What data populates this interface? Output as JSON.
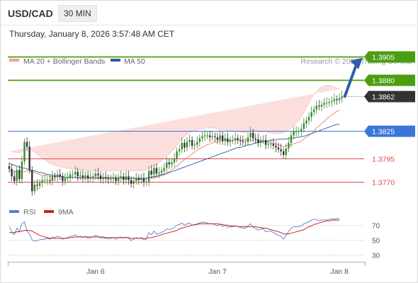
{
  "header": {
    "symbol": "USD/CAD",
    "timeframe": "30 MIN",
    "datetime": "Thursday, January 8, 2026 3:57:48 AM CET"
  },
  "legend": {
    "bollinger": {
      "label": "MA 20 + Bollinger Bands",
      "color": "#f4a09a"
    },
    "ma50": {
      "label": "MA 50",
      "color": "#2d5b9b"
    },
    "credit": "Research © 2026 Trading Central"
  },
  "colors": {
    "resistance": "#4a9e10",
    "pivot": "#3a76d8",
    "support": "#e04a4a",
    "current": "#333333",
    "arrow": "#2d5fa8",
    "candle_up": "#3c8a2e",
    "candle_down": "#333333",
    "band_fill": "#fbd9d6",
    "rsi": "#5a7fd6",
    "rsi_ma": "#d62020"
  },
  "chart_data": [
    {
      "type": "line",
      "name": "price",
      "y_range": [
        1.3745,
        1.392
      ],
      "levels": [
        {
          "value": 1.3905,
          "label": "1.3905",
          "kind": "resistance"
        },
        {
          "value": 1.388,
          "label": "1.3880",
          "kind": "resistance"
        },
        {
          "value": 1.3862,
          "label": "1.3862",
          "kind": "current"
        },
        {
          "value": 1.3825,
          "label": "1.3825",
          "kind": "pivot"
        },
        {
          "value": 1.3795,
          "label": "1.3795",
          "kind": "support"
        },
        {
          "value": 1.377,
          "label": "1.3770",
          "kind": "support"
        }
      ],
      "x_ticks": [
        {
          "index": 34,
          "label": "Jan 6"
        },
        {
          "index": 82,
          "label": "Jan 7"
        },
        {
          "index": 130,
          "label": "Jan 8"
        }
      ],
      "close": [
        1.3784,
        1.3776,
        1.3771,
        1.3783,
        1.3773,
        1.3792,
        1.3813,
        1.3808,
        1.3783,
        1.376,
        1.3767,
        1.3766,
        1.3769,
        1.3772,
        1.3772,
        1.3772,
        1.3771,
        1.3776,
        1.3775,
        1.3778,
        1.3776,
        1.3771,
        1.3774,
        1.3774,
        1.3778,
        1.3778,
        1.3781,
        1.3776,
        1.3777,
        1.3775,
        1.3777,
        1.3774,
        1.3775,
        1.3776,
        1.3779,
        1.3777,
        1.3773,
        1.3775,
        1.3774,
        1.3773,
        1.3773,
        1.3774,
        1.3771,
        1.3774,
        1.3776,
        1.3772,
        1.3776,
        1.3772,
        1.3768,
        1.3771,
        1.3774,
        1.3772,
        1.3774,
        1.377,
        1.377,
        1.3782,
        1.3778,
        1.3785,
        1.3779,
        1.378,
        1.3782,
        1.3785,
        1.3791,
        1.3789,
        1.3791,
        1.3795,
        1.3803,
        1.3805,
        1.3812,
        1.3807,
        1.3813,
        1.3815,
        1.3809,
        1.381,
        1.3813,
        1.3817,
        1.3819,
        1.382,
        1.382,
        1.3818,
        1.3819,
        1.3818,
        1.3815,
        1.382,
        1.3814,
        1.3817,
        1.3813,
        1.3815,
        1.3815,
        1.3817,
        1.3815,
        1.3814,
        1.3813,
        1.3813,
        1.3818,
        1.3823,
        1.3817,
        1.3816,
        1.3812,
        1.3815,
        1.3815,
        1.381,
        1.3811,
        1.3811,
        1.3809,
        1.3807,
        1.3805,
        1.3803,
        1.3799,
        1.3806,
        1.3812,
        1.382,
        1.3824,
        1.3824,
        1.3825,
        1.3827,
        1.3833,
        1.3836,
        1.384,
        1.3845,
        1.3848,
        1.3852,
        1.3851,
        1.3853,
        1.3855,
        1.3855,
        1.3856,
        1.3857,
        1.3859,
        1.3858,
        1.386,
        1.3862
      ],
      "ma20": [
        1.3783,
        1.3782,
        1.3781,
        1.3781,
        1.378,
        1.3781,
        1.3781,
        1.3782,
        1.3782,
        1.3781,
        1.378,
        1.3779,
        1.3778,
        1.3777,
        1.3777,
        1.3777,
        1.3776,
        1.3776,
        1.3776,
        1.3776,
        1.3776,
        1.3775,
        1.3775,
        1.3775,
        1.3775,
        1.3775,
        1.3775,
        1.3775,
        1.3775,
        1.3775,
        1.3775,
        1.3775,
        1.3775,
        1.3775,
        1.3775,
        1.3775,
        1.3775,
        1.3775,
        1.3775,
        1.3775,
        1.3775,
        1.3775,
        1.3775,
        1.3775,
        1.3775,
        1.3775,
        1.3774,
        1.3774,
        1.3774,
        1.3774,
        1.3773,
        1.3773,
        1.3773,
        1.3773,
        1.3773,
        1.3774,
        1.3774,
        1.3775,
        1.3775,
        1.3776,
        1.3777,
        1.3778,
        1.378,
        1.3781,
        1.3783,
        1.3785,
        1.3787,
        1.3789,
        1.3792,
        1.3794,
        1.3796,
        1.3798,
        1.38,
        1.3802,
        1.3804,
        1.3806,
        1.3807,
        1.3809,
        1.381,
        1.3811,
        1.3812,
        1.3813,
        1.3813,
        1.3814,
        1.3814,
        1.3815,
        1.3815,
        1.3815,
        1.3815,
        1.3815,
        1.3815,
        1.3815,
        1.3815,
        1.3815,
        1.3815,
        1.3815,
        1.3815,
        1.3815,
        1.3814,
        1.3814,
        1.3814,
        1.3813,
        1.3813,
        1.3812,
        1.3811,
        1.3811,
        1.381,
        1.3809,
        1.3808,
        1.3809,
        1.3809,
        1.381,
        1.3811,
        1.3812,
        1.3813,
        1.3814,
        1.3816,
        1.3818,
        1.382,
        1.3822,
        1.3825,
        1.3828,
        1.383,
        1.3833,
        1.3835,
        1.3838,
        1.384,
        1.3842,
        1.3844,
        1.3846,
        1.3847
      ],
      "bb_upper": [
        1.3803,
        1.3803,
        1.3802,
        1.3802,
        1.3801,
        1.3803,
        1.3805,
        1.3807,
        1.3806,
        1.3804,
        1.3802,
        1.38,
        1.3798,
        1.3795,
        1.3794,
        1.3792,
        1.379,
        1.3789,
        1.3788,
        1.3787,
        1.3786,
        1.3786,
        1.3785,
        1.3785,
        1.3784,
        1.3784,
        1.3784,
        1.3783,
        1.3783,
        1.3783,
        1.3783,
        1.3782,
        1.3782,
        1.3782,
        1.3782,
        1.3782,
        1.3782,
        1.3782,
        1.3782,
        1.3782,
        1.3782,
        1.3782,
        1.3782,
        1.3782,
        1.3782,
        1.3782,
        1.3782,
        1.3782,
        1.3782,
        1.3782,
        1.3782,
        1.3782,
        1.3782,
        1.3782,
        1.3783,
        1.3785,
        1.3786,
        1.3788,
        1.3789,
        1.3791,
        1.3793,
        1.3795,
        1.3798,
        1.38,
        1.3803,
        1.3806,
        1.381,
        1.3813,
        1.3817,
        1.3819,
        1.3821,
        1.3823,
        1.3824,
        1.3825,
        1.3826,
        1.3827,
        1.3827,
        1.3828,
        1.3828,
        1.3828,
        1.3828,
        1.3828,
        1.3827,
        1.3827,
        1.3826,
        1.3826,
        1.3825,
        1.3825,
        1.3824,
        1.3824,
        1.3824,
        1.3824,
        1.3823,
        1.3823,
        1.3824,
        1.3825,
        1.3825,
        1.3825,
        1.3824,
        1.3824,
        1.3824,
        1.3824,
        1.3823,
        1.3823,
        1.3822,
        1.3822,
        1.3822,
        1.3822,
        1.3823,
        1.3825,
        1.3826,
        1.3828,
        1.383,
        1.3833,
        1.3836,
        1.384,
        1.3845,
        1.385,
        1.3855,
        1.386,
        1.3864,
        1.3867,
        1.387,
        1.3872,
        1.3873,
        1.3874,
        1.3874,
        1.3873,
        1.3872,
        1.3871,
        1.387
      ],
      "bb_lower": [
        1.3763,
        1.3761,
        1.376,
        1.376,
        1.3759,
        1.3759,
        1.3757,
        1.3757,
        1.3758,
        1.3758,
        1.3758,
        1.3758,
        1.3758,
        1.3759,
        1.376,
        1.3762,
        1.3762,
        1.3763,
        1.3764,
        1.3765,
        1.3766,
        1.3764,
        1.3765,
        1.3765,
        1.3766,
        1.3766,
        1.3766,
        1.3767,
        1.3767,
        1.3767,
        1.3767,
        1.3768,
        1.3768,
        1.3768,
        1.3768,
        1.3768,
        1.3768,
        1.3768,
        1.3768,
        1.3768,
        1.3768,
        1.3768,
        1.3768,
        1.3768,
        1.3768,
        1.3768,
        1.3766,
        1.3766,
        1.3766,
        1.3766,
        1.3764,
        1.3764,
        1.3764,
        1.3764,
        1.3763,
        1.3763,
        1.3762,
        1.3762,
        1.3761,
        1.3761,
        1.3761,
        1.3761,
        1.3762,
        1.3762,
        1.3763,
        1.3764,
        1.3764,
        1.3765,
        1.3767,
        1.3769,
        1.3771,
        1.3773,
        1.3776,
        1.3779,
        1.3782,
        1.3785,
        1.3787,
        1.379,
        1.3792,
        1.3794,
        1.3796,
        1.3798,
        1.3799,
        1.3801,
        1.3802,
        1.3804,
        1.3805,
        1.3805,
        1.3806,
        1.3806,
        1.3806,
        1.3806,
        1.3807,
        1.3807,
        1.3806,
        1.3805,
        1.3805,
        1.3805,
        1.3804,
        1.3804,
        1.3804,
        1.3802,
        1.3803,
        1.3801,
        1.38,
        1.38,
        1.3798,
        1.3796,
        1.3793,
        1.3793,
        1.3792,
        1.3792,
        1.3792,
        1.3791,
        1.379,
        1.3788,
        1.3787,
        1.3786,
        1.3785,
        1.3784,
        1.3786,
        1.3789,
        1.379,
        1.3794,
        1.3797,
        1.3802,
        1.3806,
        1.3811,
        1.3816,
        1.3821,
        1.3824
      ],
      "ma50": [
        1.379,
        1.3789,
        1.3788,
        1.3787,
        1.3786,
        1.3785,
        1.3785,
        1.3784,
        1.3783,
        1.3782,
        1.3782,
        1.3781,
        1.378,
        1.378,
        1.3779,
        1.3778,
        1.3778,
        1.3777,
        1.3777,
        1.3776,
        1.3776,
        1.3776,
        1.3775,
        1.3775,
        1.3775,
        1.3775,
        1.3775,
        1.3774,
        1.3774,
        1.3774,
        1.3774,
        1.3774,
        1.3774,
        1.3774,
        1.3774,
        1.3774,
        1.3774,
        1.3774,
        1.3774,
        1.3774,
        1.3774,
        1.3774,
        1.3774,
        1.3774,
        1.3774,
        1.3774,
        1.3774,
        1.3774,
        1.3774,
        1.3774,
        1.3774,
        1.3774,
        1.3774,
        1.3774,
        1.3774,
        1.3775,
        1.3775,
        1.3776,
        1.3776,
        1.3777,
        1.3778,
        1.3778,
        1.3779,
        1.378,
        1.3781,
        1.3782,
        1.3783,
        1.3784,
        1.3785,
        1.3786,
        1.3787,
        1.3788,
        1.3789,
        1.379,
        1.3791,
        1.3792,
        1.3793,
        1.3794,
        1.3795,
        1.3796,
        1.3797,
        1.3798,
        1.3799,
        1.38,
        1.3801,
        1.3802,
        1.3803,
        1.3804,
        1.3805,
        1.3806,
        1.3807,
        1.3807,
        1.3808,
        1.3809,
        1.381,
        1.381,
        1.3811,
        1.3812,
        1.3812,
        1.3813,
        1.3813,
        1.3814,
        1.3814,
        1.3815,
        1.3815,
        1.3815,
        1.3816,
        1.3816,
        1.3816,
        1.3816,
        1.3817,
        1.3817,
        1.3817,
        1.3818,
        1.3818,
        1.3819,
        1.3819,
        1.382,
        1.3821,
        1.3822,
        1.3823,
        1.3824,
        1.3825,
        1.3826,
        1.3827,
        1.3828,
        1.3829,
        1.383,
        1.3831,
        1.3832,
        1.3832
      ]
    },
    {
      "type": "line",
      "name": "rsi",
      "legend": [
        "RSI",
        "9MA"
      ],
      "y_range": [
        20,
        80
      ],
      "y_ticks": [
        70,
        50,
        30
      ],
      "rsi": [
        68,
        61,
        57,
        66,
        61,
        72,
        75,
        62,
        58,
        50,
        48,
        49,
        50,
        51,
        51,
        52,
        51,
        54,
        53,
        55,
        54,
        51,
        52,
        52,
        55,
        55,
        57,
        54,
        55,
        53,
        55,
        52,
        53,
        54,
        56,
        55,
        52,
        53,
        52,
        52,
        52,
        53,
        51,
        53,
        54,
        52,
        54,
        52,
        49,
        51,
        53,
        52,
        53,
        50,
        51,
        60,
        57,
        62,
        58,
        59,
        60,
        62,
        65,
        64,
        65,
        67,
        70,
        71,
        73,
        70,
        72,
        73,
        70,
        70,
        72,
        73,
        74,
        74,
        73,
        72,
        72,
        71,
        69,
        72,
        68,
        70,
        67,
        68,
        68,
        69,
        68,
        67,
        66,
        66,
        69,
        72,
        67,
        66,
        63,
        65,
        65,
        61,
        62,
        62,
        60,
        58,
        56,
        55,
        51,
        56,
        61,
        66,
        68,
        68,
        68,
        69,
        72,
        73,
        75,
        77,
        78,
        78,
        76,
        77,
        77,
        77,
        78,
        79,
        78,
        79,
        79
      ],
      "rsi_ma": [
        60,
        60,
        60,
        61,
        61,
        62,
        63,
        63,
        63,
        62,
        60,
        58,
        56,
        55,
        54,
        53,
        52,
        52,
        52,
        52,
        52,
        52,
        52,
        53,
        53,
        53,
        54,
        54,
        54,
        54,
        54,
        54,
        54,
        54,
        54,
        54,
        54,
        54,
        53,
        53,
        53,
        53,
        53,
        53,
        53,
        53,
        53,
        53,
        52,
        52,
        52,
        52,
        52,
        52,
        52,
        53,
        53,
        54,
        55,
        56,
        57,
        58,
        59,
        60,
        61,
        62,
        63,
        65,
        66,
        67,
        68,
        69,
        70,
        71,
        71,
        72,
        72,
        72,
        72,
        72,
        72,
        72,
        72,
        71,
        71,
        70,
        70,
        69,
        69,
        69,
        68,
        68,
        68,
        68,
        68,
        68,
        68,
        68,
        67,
        67,
        66,
        66,
        65,
        64,
        63,
        62,
        61,
        60,
        58,
        58,
        58,
        59,
        60,
        61,
        62,
        63,
        64,
        66,
        68,
        69,
        71,
        72,
        73,
        74,
        75,
        76,
        76,
        77,
        77,
        77,
        77
      ]
    }
  ]
}
